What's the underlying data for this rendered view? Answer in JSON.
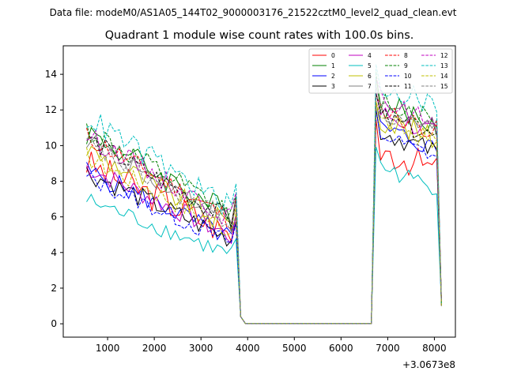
{
  "chart_data": {
    "type": "line",
    "suptitle": "Data file: modeM0/AS1A05_144T02_9000003176_21522cztM0_level2_quad_clean.evt",
    "title": "Quadrant 1 module wise count rates with 100.0s bins.",
    "xlabel": "",
    "ylabel": "",
    "x_offset_label": "+3.0673e8",
    "xlim": [
      50,
      8450
    ],
    "ylim": [
      -0.75,
      15.6
    ],
    "xticks": [
      1000,
      2000,
      3000,
      4000,
      5000,
      6000,
      7000,
      8000
    ],
    "yticks": [
      0,
      2,
      4,
      6,
      8,
      10,
      12,
      14
    ],
    "legend": {
      "location": "top-right",
      "columns": 4
    },
    "x": [
      550,
      650,
      750,
      850,
      950,
      1050,
      1150,
      1250,
      1350,
      1450,
      1550,
      1650,
      1750,
      1850,
      1950,
      2050,
      2150,
      2250,
      2350,
      2450,
      2550,
      2650,
      2750,
      2850,
      2950,
      3050,
      3150,
      3250,
      3350,
      3450,
      3550,
      3650,
      3750,
      3850,
      3950,
      4050,
      4150,
      4250,
      4350,
      4450,
      4550,
      4650,
      4750,
      4850,
      4950,
      5050,
      5150,
      5250,
      5350,
      5450,
      5550,
      5650,
      5750,
      5850,
      5950,
      6050,
      6150,
      6250,
      6350,
      6450,
      6550,
      6650,
      6750,
      6850,
      6950,
      7050,
      7150,
      7250,
      7350,
      7450,
      7550,
      7650,
      7750,
      7850,
      7950,
      8050,
      8150
    ],
    "series": [
      {
        "name": "0",
        "color": "#ff0000",
        "dash": "solid",
        "base": 9.0,
        "tail": 9.8,
        "amp": 0.9
      },
      {
        "name": "1",
        "color": "#008000",
        "dash": "solid",
        "base": 10.8,
        "tail": 12.3,
        "amp": 0.8
      },
      {
        "name": "2",
        "color": "#0000ff",
        "dash": "solid",
        "base": 8.6,
        "tail": 11.0,
        "amp": 0.6
      },
      {
        "name": "3",
        "color": "#000000",
        "dash": "solid",
        "base": 8.5,
        "tail": 10.8,
        "amp": 0.6
      },
      {
        "name": "4",
        "color": "#c000c0",
        "dash": "solid",
        "base": 8.8,
        "tail": 11.8,
        "amp": 0.6
      },
      {
        "name": "5",
        "color": "#00bfbf",
        "dash": "solid",
        "base": 6.95,
        "tail": 8.8,
        "amp": 0.5
      },
      {
        "name": "6",
        "color": "#bfbf00",
        "dash": "solid",
        "base": 9.8,
        "tail": 11.5,
        "amp": 0.7
      },
      {
        "name": "7",
        "color": "#808080",
        "dash": "solid",
        "base": 10.4,
        "tail": 12.4,
        "amp": 0.6
      },
      {
        "name": "8",
        "color": "#ff0000",
        "dash": "dashed",
        "base": 10.5,
        "tail": 12.0,
        "amp": 0.6
      },
      {
        "name": "9",
        "color": "#008000",
        "dash": "dashed",
        "base": 10.9,
        "tail": 12.6,
        "amp": 0.7
      },
      {
        "name": "10",
        "color": "#0000ff",
        "dash": "dashed",
        "base": 8.2,
        "tail": 10.6,
        "amp": 0.5
      },
      {
        "name": "11",
        "color": "#000000",
        "dash": "dashed",
        "base": 10.4,
        "tail": 11.6,
        "amp": 0.6
      },
      {
        "name": "12",
        "color": "#c000c0",
        "dash": "dashed",
        "base": 10.6,
        "tail": 12.5,
        "amp": 0.6
      },
      {
        "name": "13",
        "color": "#00bfbf",
        "dash": "dashed",
        "base": 11.6,
        "tail": 13.4,
        "amp": 0.7
      },
      {
        "name": "14",
        "color": "#bfbf00",
        "dash": "dashed",
        "base": 9.4,
        "tail": 11.4,
        "amp": 0.6
      },
      {
        "name": "15",
        "color": "#808080",
        "dash": "dashed",
        "base": 10.1,
        "tail": 11.8,
        "amp": 0.6
      }
    ]
  }
}
